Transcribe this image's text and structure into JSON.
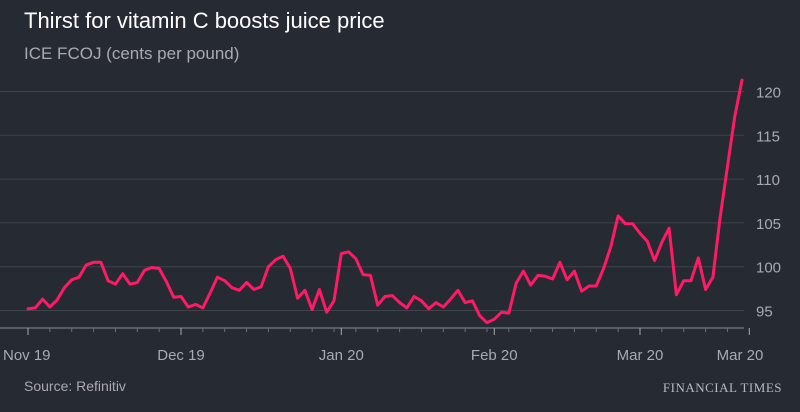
{
  "chart_data": {
    "type": "line",
    "title": "Thirst for vitamin C boosts juice price",
    "subtitle": "ICE FCOJ (cents per pound)",
    "ylim": [
      93,
      122
    ],
    "yticks": [
      95,
      100,
      105,
      110,
      115,
      120
    ],
    "grid": true,
    "x_tick_labels": [
      "Nov 19",
      "Dec 19",
      "Jan 20",
      "Feb 20",
      "Mar 20",
      "Mar 20"
    ],
    "x_tick_index": [
      0,
      21,
      43,
      64,
      84,
      99
    ],
    "line_color": "#ff1a66",
    "series": [
      {
        "values": [
          95.2,
          95.3,
          96.3,
          95.4,
          96.2,
          97.6,
          98.5,
          98.8,
          100.2,
          100.5,
          100.5,
          98.4,
          98.0,
          99.2,
          98.0,
          98.2,
          99.6,
          99.9,
          99.8,
          98.3,
          96.5,
          96.6,
          95.4,
          95.7,
          95.3,
          97.0,
          98.8,
          98.4,
          97.6,
          97.3,
          98.2,
          97.4,
          97.7,
          100.0,
          100.8,
          101.2,
          99.8,
          96.4,
          97.3,
          95.1,
          97.4,
          94.8,
          96.1,
          101.5,
          101.7,
          100.9,
          99.1,
          99.0,
          95.6,
          96.6,
          96.7,
          95.9,
          95.3,
          96.6,
          96.1,
          95.2,
          95.9,
          95.4,
          96.3,
          97.3,
          95.9,
          96.1,
          94.4,
          93.6,
          94.0,
          94.8,
          94.7,
          98.1,
          99.5,
          97.9,
          99.0,
          98.9,
          98.6,
          100.5,
          98.5,
          99.5,
          97.2,
          97.8,
          97.8,
          99.8,
          102.3,
          105.8,
          104.9,
          104.9,
          103.8,
          102.9,
          100.7,
          102.8,
          104.4,
          96.8,
          98.4,
          98.4,
          101.0,
          97.4,
          98.8,
          105.6,
          111.4,
          117.1,
          121.3
        ]
      }
    ]
  },
  "footer": {
    "source": "Source: Refinitiv",
    "brand": "FINANCIAL TIMES"
  }
}
